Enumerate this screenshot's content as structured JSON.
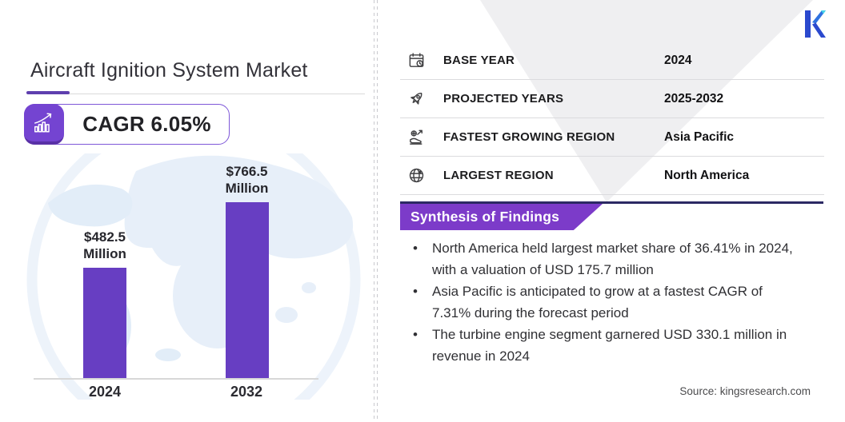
{
  "brand": {
    "logo_letter": "K",
    "logo_colors": {
      "stem": "#2b49ce",
      "arm": "#3072df",
      "accent": "#45d4e9"
    }
  },
  "left": {
    "title": "Aircraft Ignition System Market",
    "cagr_badge": {
      "label": "CAGR 6.05%",
      "icon": "growth-trend-icon"
    }
  },
  "chart_data": {
    "type": "bar",
    "title": "Aircraft Ignition System Market size",
    "categories": [
      "2024",
      "2032"
    ],
    "values": [
      482.5,
      766.5
    ],
    "value_labels": [
      "$482.5 Million",
      "$766.5 Million"
    ],
    "unit": "USD Million",
    "ylim": [
      0,
      800
    ],
    "grid": false,
    "bar_color": "#673ec2",
    "background": "world-map-watermark"
  },
  "right": {
    "facts": [
      {
        "icon": "calendar-icon",
        "label": "BASE YEAR",
        "value": "2024"
      },
      {
        "icon": "rocket-icon",
        "label": "PROJECTED YEARS",
        "value": "2025-2032"
      },
      {
        "icon": "growth-region-icon",
        "label": "FASTEST GROWING REGION",
        "value": "Asia Pacific"
      },
      {
        "icon": "globe-icon",
        "label": "LARGEST REGION",
        "value": "North America"
      }
    ],
    "synthesis": {
      "title": "Synthesis of Findings",
      "bullets": [
        "North America held largest market share of 36.41% in 2024, with a valuation of USD 175.7 million",
        "Asia Pacific is anticipated to grow at a fastest CAGR of 7.31% during the forecast period",
        "The turbine engine segment garnered USD 330.1 million in revenue in 2024"
      ]
    },
    "source": "Source: kingsresearch.com"
  },
  "colors": {
    "accent_purple": "#5e3fae",
    "badge_purple": "#7444d1",
    "banner_purple": "#7c3bc9",
    "dark_indigo_line": "#2c2964",
    "triangle_gray": "#efeff1",
    "map_blue": "#e3edf8"
  }
}
